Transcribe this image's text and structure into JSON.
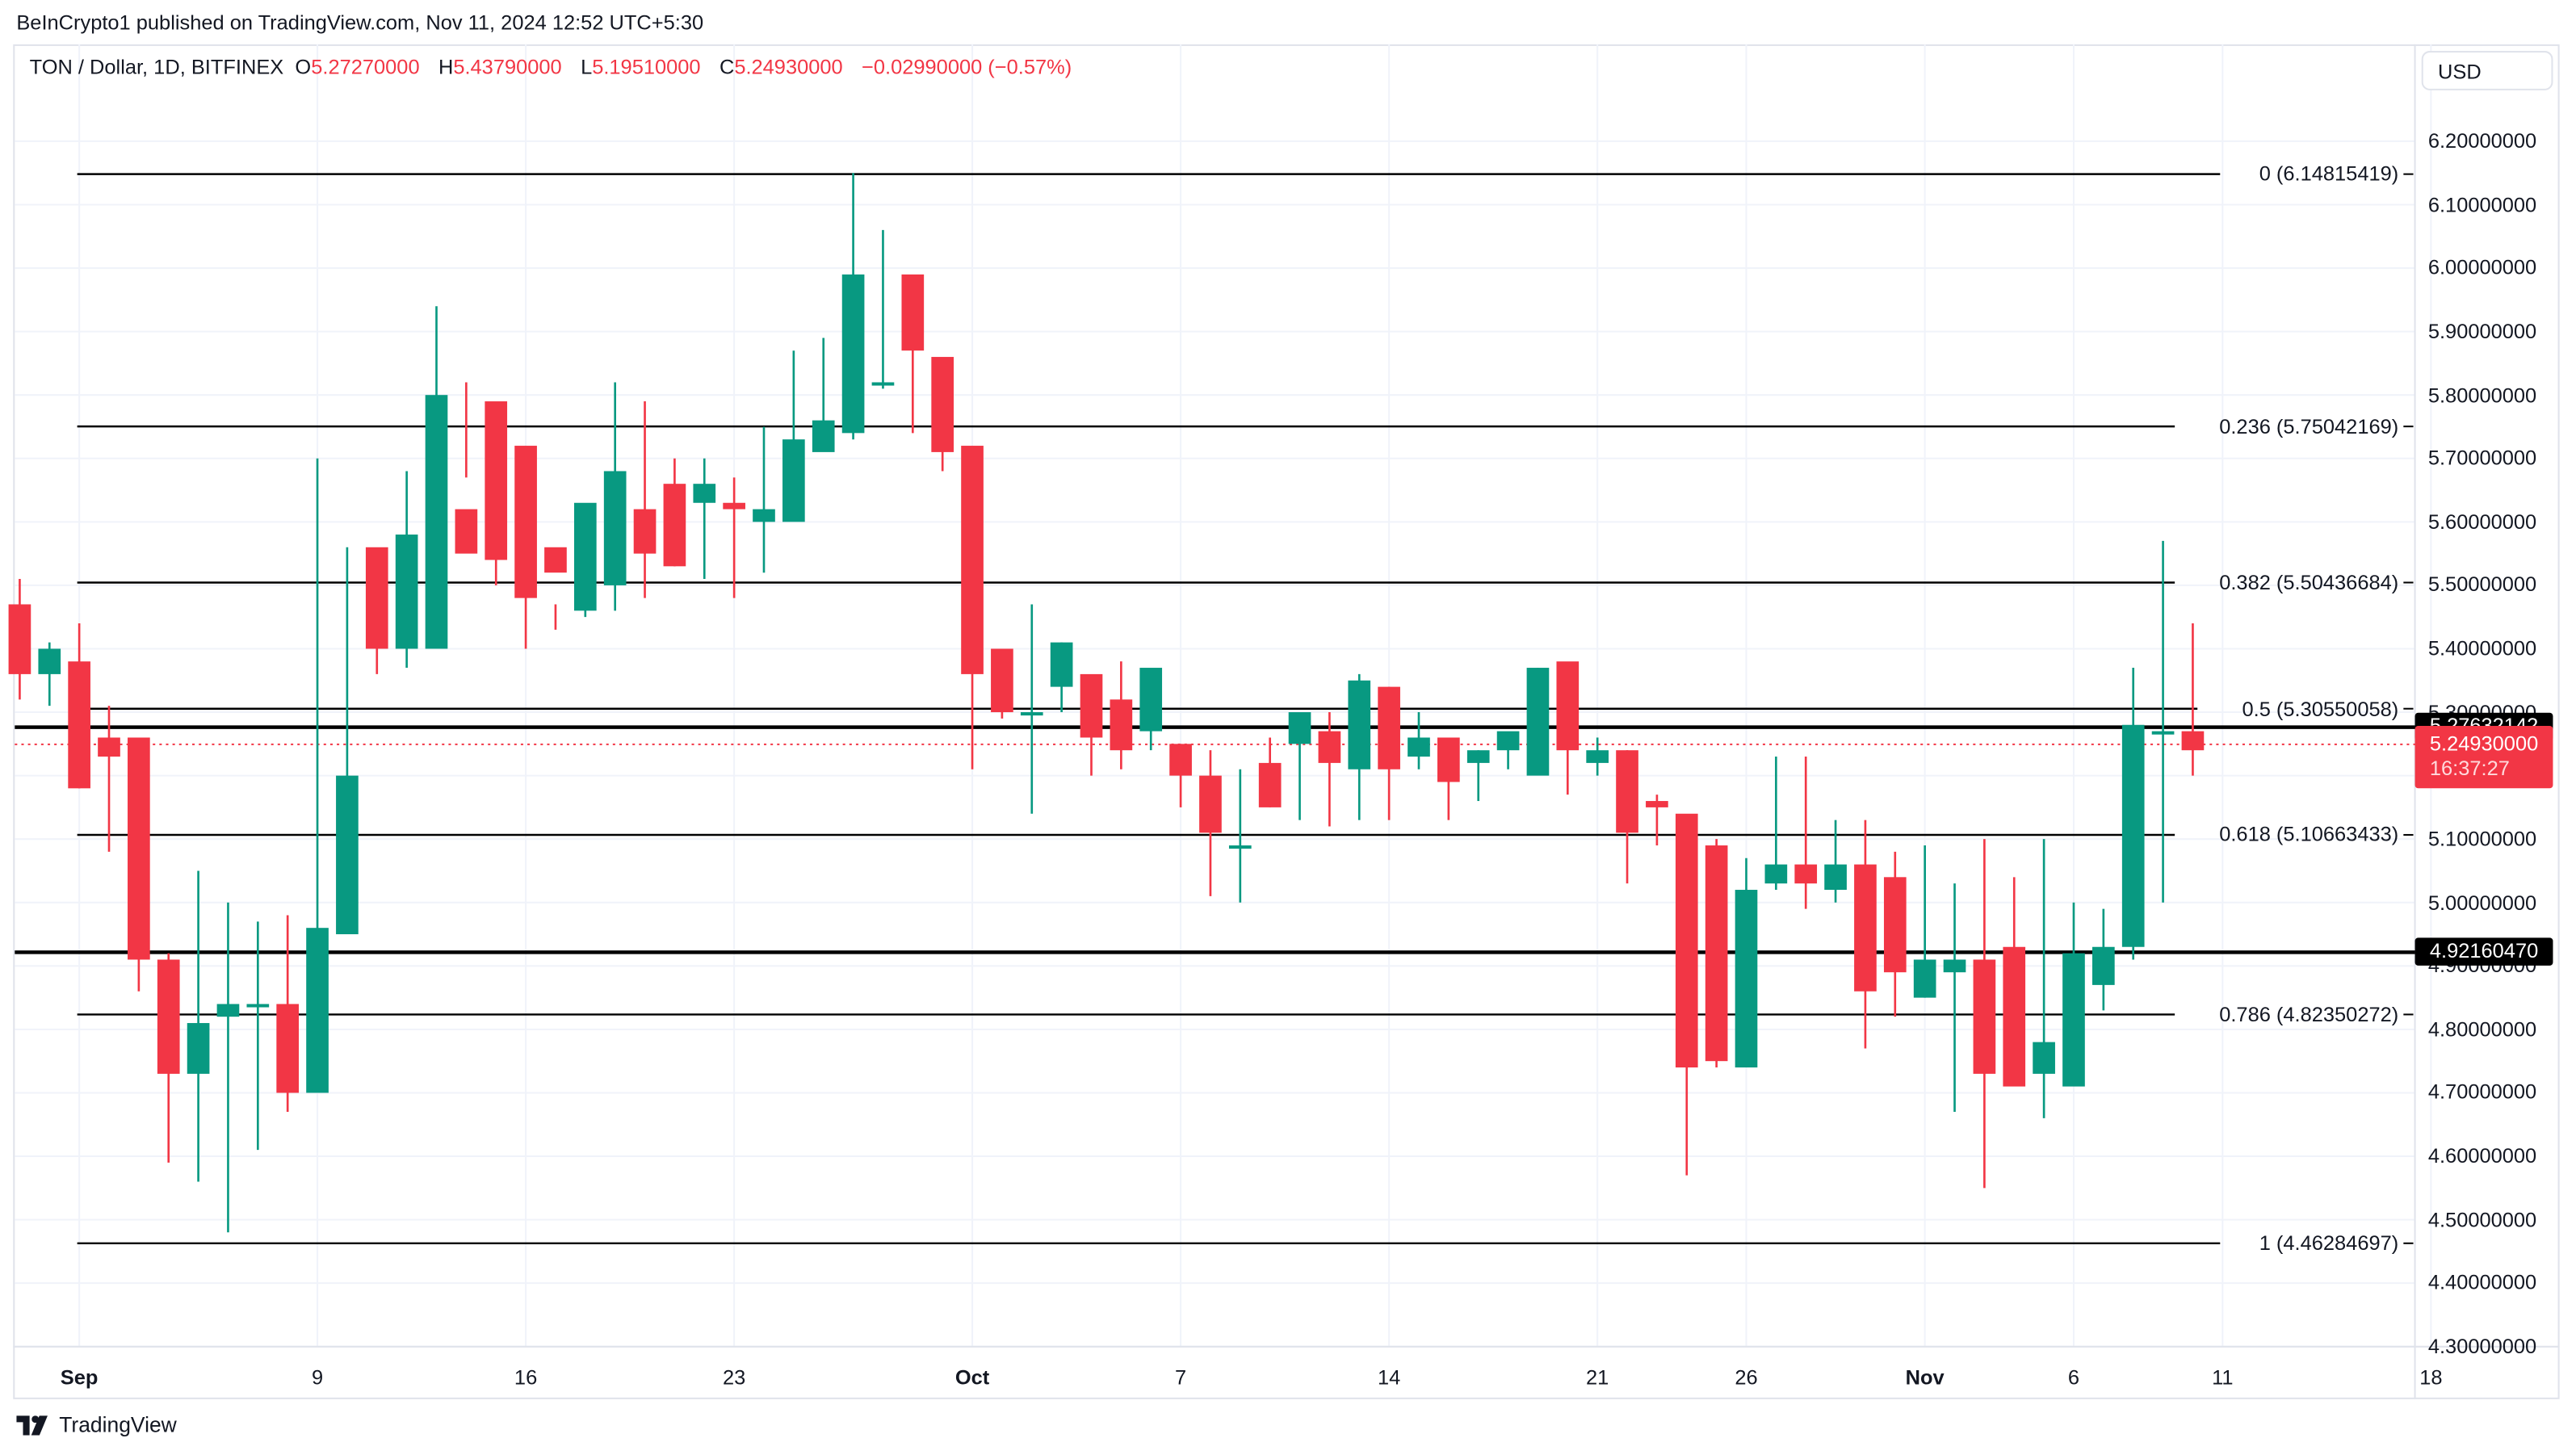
{
  "header": {
    "publisher_line": "BeInCrypto1 published on TradingView.com, Nov 11, 2024 12:52 UTC+5:30"
  },
  "legend": {
    "symbol": "TON / Dollar, 1D, BITFINEX",
    "open_label": "O",
    "open": "5.27270000",
    "high_label": "H",
    "high": "5.43790000",
    "low_label": "L",
    "low": "5.19510000",
    "close_label": "C",
    "close": "5.24930000",
    "change": "−0.02990000 (−0.57%)"
  },
  "currency_button": "USD",
  "price_axis": [
    "6.20000000",
    "6.10000000",
    "6.00000000",
    "5.90000000",
    "5.80000000",
    "5.70000000",
    "5.60000000",
    "5.50000000",
    "5.40000000",
    "5.30000000",
    "5.20000000",
    "5.10000000",
    "5.00000000",
    "4.90000000",
    "4.80000000",
    "4.70000000",
    "4.60000000",
    "4.50000000",
    "4.40000000",
    "4.30000000"
  ],
  "time_axis": [
    {
      "label": "Sep",
      "bold": true
    },
    {
      "label": "9",
      "bold": false
    },
    {
      "label": "16",
      "bold": false
    },
    {
      "label": "23",
      "bold": false
    },
    {
      "label": "Oct",
      "bold": true
    },
    {
      "label": "7",
      "bold": false
    },
    {
      "label": "14",
      "bold": false
    },
    {
      "label": "21",
      "bold": false
    },
    {
      "label": "26",
      "bold": false
    },
    {
      "label": "Nov",
      "bold": true
    },
    {
      "label": "6",
      "bold": false
    },
    {
      "label": "11",
      "bold": false
    },
    {
      "label": "18",
      "bold": false
    }
  ],
  "fib_levels": [
    {
      "label": "0 (6.14815419)",
      "ratio": 0,
      "price": 6.14815419
    },
    {
      "label": "0.236 (5.75042169)",
      "ratio": 0.236,
      "price": 5.75042169
    },
    {
      "label": "0.382 (5.50436684)",
      "ratio": 0.382,
      "price": 5.50436684
    },
    {
      "label": "0.5 (5.30550058)",
      "ratio": 0.5,
      "price": 5.30550058
    },
    {
      "label": "0.618 (5.10663433)",
      "ratio": 0.618,
      "price": 5.10663433
    },
    {
      "label": "0.786 (4.82350272)",
      "ratio": 0.786,
      "price": 4.82350272
    },
    {
      "label": "1 (4.46284697)",
      "ratio": 1,
      "price": 4.46284697
    }
  ],
  "horizontal_lines": [
    {
      "price": 5.27632142,
      "label": "5.27632142"
    },
    {
      "price": 4.9216047,
      "label": "4.92160470"
    }
  ],
  "last_price_tag": {
    "price": "5.24930000",
    "countdown": "16:37:27"
  },
  "colors": {
    "up": "#089981",
    "down": "#f23645",
    "fib_line": "#000000",
    "grid": "#f0f3fa"
  },
  "footer": {
    "brand": "TradingView"
  },
  "chart_data": {
    "type": "candlestick",
    "title": "TON / Dollar, 1D, BITFINEX",
    "xlabel": "",
    "ylabel": "USD",
    "ylim": [
      4.3,
      6.2
    ],
    "grid": true,
    "x": [
      "Aug 30",
      "Aug 31",
      "Sep 1",
      "Sep 2",
      "Sep 3",
      "Sep 4",
      "Sep 5",
      "Sep 6",
      "Sep 7",
      "Sep 8",
      "Sep 9",
      "Sep 10",
      "Sep 11",
      "Sep 12",
      "Sep 13",
      "Sep 14",
      "Sep 15",
      "Sep 16",
      "Sep 17",
      "Sep 18",
      "Sep 19",
      "Sep 20",
      "Sep 21",
      "Sep 22",
      "Sep 23",
      "Sep 24",
      "Sep 25",
      "Sep 26",
      "Sep 27",
      "Sep 28",
      "Sep 29",
      "Sep 30",
      "Oct 1",
      "Oct 2",
      "Oct 3",
      "Oct 4",
      "Oct 5",
      "Oct 6",
      "Oct 7",
      "Oct 8",
      "Oct 9",
      "Oct 10",
      "Oct 11",
      "Oct 12",
      "Oct 13",
      "Oct 14",
      "Oct 15",
      "Oct 16",
      "Oct 17",
      "Oct 18",
      "Oct 19",
      "Oct 20",
      "Oct 21",
      "Oct 22",
      "Oct 23",
      "Oct 24",
      "Oct 25",
      "Oct 26",
      "Oct 27",
      "Oct 28",
      "Oct 29",
      "Oct 30",
      "Oct 31",
      "Nov 1",
      "Nov 2",
      "Nov 3",
      "Nov 4",
      "Nov 5",
      "Nov 6",
      "Nov 7",
      "Nov 8",
      "Nov 9",
      "Nov 10",
      "Nov 11"
    ],
    "open": [
      5.47,
      5.36,
      5.38,
      5.26,
      5.26,
      4.91,
      4.73,
      4.82,
      4.84,
      4.84,
      4.7,
      4.95,
      5.56,
      5.4,
      5.4,
      5.62,
      5.79,
      5.72,
      5.56,
      5.46,
      5.5,
      5.62,
      5.66,
      5.63,
      5.63,
      5.6,
      5.6,
      5.71,
      5.74,
      5.82,
      5.99,
      5.86,
      5.72,
      5.4,
      5.3,
      5.34,
      5.36,
      5.32,
      5.27,
      5.25,
      5.2,
      5.09,
      5.22,
      5.25,
      5.27,
      5.21,
      5.34,
      5.23,
      5.26,
      5.22,
      5.24,
      5.2,
      5.38,
      5.22,
      5.24,
      5.16,
      5.14,
      5.09,
      4.74,
      5.03,
      5.06,
      5.02,
      5.06,
      5.04,
      4.85,
      4.89,
      4.91,
      4.93,
      4.73,
      4.71,
      4.87,
      4.93,
      5.27,
      5.27
    ],
    "high": [
      5.51,
      5.41,
      5.44,
      5.31,
      5.26,
      4.92,
      5.05,
      5.0,
      4.97,
      4.98,
      5.7,
      5.56,
      5.55,
      5.68,
      5.94,
      5.82,
      5.76,
      5.58,
      5.47,
      5.62,
      5.82,
      5.79,
      5.7,
      5.7,
      5.67,
      5.75,
      5.87,
      5.89,
      6.15,
      6.06,
      5.89,
      5.84,
      5.5,
      5.35,
      5.47,
      5.41,
      5.33,
      5.38,
      5.36,
      5.25,
      5.24,
      5.21,
      5.26,
      5.29,
      5.3,
      5.36,
      5.34,
      5.3,
      5.25,
      5.24,
      5.26,
      5.37,
      5.34,
      5.26,
      5.24,
      5.17,
      5.12,
      5.1,
      5.07,
      5.23,
      5.23,
      5.13,
      5.13,
      5.08,
      5.09,
      5.03,
      5.1,
      5.04,
      5.1,
      5.0,
      4.99,
      5.37,
      5.57,
      5.44
    ],
    "low": [
      5.32,
      5.31,
      5.18,
      5.08,
      4.86,
      4.59,
      4.56,
      4.48,
      4.61,
      4.67,
      4.89,
      5.15,
      5.36,
      5.37,
      5.51,
      5.67,
      5.5,
      5.4,
      5.43,
      5.45,
      5.46,
      5.48,
      5.53,
      5.51,
      5.48,
      5.52,
      5.63,
      5.72,
      5.73,
      5.81,
      5.74,
      5.68,
      5.21,
      5.29,
      5.14,
      5.3,
      5.2,
      5.21,
      5.24,
      5.15,
      5.01,
      5.0,
      5.15,
      5.13,
      5.12,
      5.13,
      5.13,
      5.21,
      5.13,
      5.16,
      5.21,
      5.23,
      5.17,
      5.2,
      5.03,
      5.09,
      4.57,
      4.74,
      4.98,
      5.02,
      4.99,
      5.0,
      4.77,
      4.82,
      4.85,
      4.67,
      4.55,
      4.73,
      4.66,
      4.75,
      4.83,
      4.91,
      5.0,
      5.2
    ],
    "close": [
      5.36,
      5.4,
      5.18,
      5.23,
      4.91,
      4.73,
      4.81,
      4.84,
      4.84,
      4.7,
      4.96,
      5.2,
      5.4,
      5.58,
      5.8,
      5.55,
      5.54,
      5.48,
      5.52,
      5.63,
      5.68,
      5.55,
      5.53,
      5.66,
      5.62,
      5.62,
      5.73,
      5.76,
      5.99,
      5.82,
      5.87,
      5.71,
      5.36,
      5.3,
      5.3,
      5.41,
      5.26,
      5.24,
      5.37,
      5.2,
      5.11,
      5.09,
      5.15,
      5.3,
      5.22,
      5.35,
      5.21,
      5.26,
      5.19,
      5.24,
      5.27,
      5.37,
      5.24,
      5.24,
      5.11,
      5.15,
      4.74,
      4.75,
      5.02,
      5.06,
      5.03,
      5.06,
      4.86,
      4.89,
      4.91,
      4.91,
      4.73,
      4.71,
      4.78,
      4.92,
      4.93,
      5.28,
      5.27,
      5.24
    ]
  }
}
